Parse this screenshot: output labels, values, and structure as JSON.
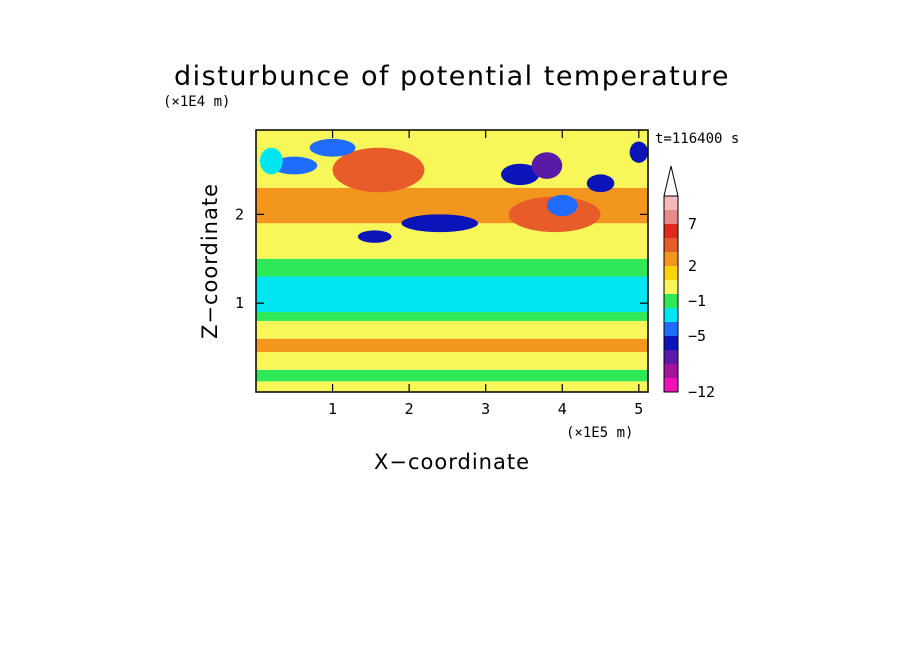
{
  "chart_data": {
    "type": "heatmap",
    "title": "disturbunce of potential temperature",
    "xlabel": "X−coordinate",
    "ylabel": "Z−coordinate",
    "x_unit": "(×1E5 m)",
    "y_unit": "(×1E4 m)",
    "time_label": "t=116400 s",
    "xlim": [
      0,
      5.12
    ],
    "ylim": [
      0,
      2.95
    ],
    "x_ticks": [
      "1",
      "2",
      "3",
      "4",
      "5"
    ],
    "y_ticks": [
      "1",
      "2"
    ],
    "x_tick_values": [
      1,
      2,
      3,
      4,
      5
    ],
    "y_tick_values": [
      1,
      2
    ],
    "colorbar": {
      "tick_labels": [
        "7",
        "2",
        "−1",
        "−5",
        "−12"
      ],
      "tick_values": [
        7,
        2,
        -1,
        -5,
        -12
      ],
      "extend": "max",
      "levels": [
        {
          "color": "#f5b8bc"
        },
        {
          "color": "#e8898c"
        },
        {
          "color": "#e02a1e"
        },
        {
          "color": "#e85c2a"
        },
        {
          "color": "#f3961e"
        },
        {
          "color": "#f9d40e"
        },
        {
          "color": "#f7f75a"
        },
        {
          "color": "#2fe858"
        },
        {
          "color": "#00e5f2"
        },
        {
          "color": "#1f6cff"
        },
        {
          "color": "#0a14b8"
        },
        {
          "color": "#5a1aa8"
        },
        {
          "color": "#a5159c"
        },
        {
          "color": "#f00fb8"
        }
      ]
    },
    "bands": [
      {
        "z": [
          0.0,
          0.12
        ],
        "level": "yellow"
      },
      {
        "z": [
          0.12,
          0.25
        ],
        "level": "green"
      },
      {
        "z": [
          0.25,
          0.45
        ],
        "level": "yellow"
      },
      {
        "z": [
          0.45,
          0.6
        ],
        "level": "orange"
      },
      {
        "z": [
          0.6,
          0.8
        ],
        "level": "yellow"
      },
      {
        "z": [
          0.8,
          0.9
        ],
        "level": "green"
      },
      {
        "z": [
          0.9,
          1.3
        ],
        "level": "cyan"
      },
      {
        "z": [
          1.3,
          1.5
        ],
        "level": "green"
      },
      {
        "z": [
          1.5,
          1.9
        ],
        "level": "yellow"
      },
      {
        "z": [
          1.9,
          2.3
        ],
        "level": "orange"
      },
      {
        "z": [
          2.3,
          2.95
        ],
        "level": "yellow"
      }
    ],
    "features": [
      {
        "x": 2.4,
        "z": 1.9,
        "rx": 0.5,
        "rz": 0.1,
        "level": "dark-blue"
      },
      {
        "x": 1.55,
        "z": 1.75,
        "rx": 0.22,
        "rz": 0.07,
        "level": "dark-blue"
      },
      {
        "x": 1.6,
        "z": 2.5,
        "rx": 0.6,
        "rz": 0.25,
        "level": "dark-orange"
      },
      {
        "x": 3.9,
        "z": 2.0,
        "rx": 0.6,
        "rz": 0.2,
        "level": "dark-orange"
      },
      {
        "x": 0.5,
        "z": 2.55,
        "rx": 0.3,
        "rz": 0.1,
        "level": "blue"
      },
      {
        "x": 1.0,
        "z": 2.75,
        "rx": 0.3,
        "rz": 0.1,
        "level": "blue"
      },
      {
        "x": 3.45,
        "z": 2.45,
        "rx": 0.25,
        "rz": 0.12,
        "level": "dark-blue"
      },
      {
        "x": 3.8,
        "z": 2.55,
        "rx": 0.2,
        "rz": 0.15,
        "level": "purple"
      },
      {
        "x": 4.0,
        "z": 2.1,
        "rx": 0.2,
        "rz": 0.12,
        "level": "blue"
      },
      {
        "x": 4.5,
        "z": 2.35,
        "rx": 0.18,
        "rz": 0.1,
        "level": "dark-blue"
      },
      {
        "x": 5.0,
        "z": 2.7,
        "rx": 0.12,
        "rz": 0.12,
        "level": "dark-blue"
      },
      {
        "x": 0.2,
        "z": 2.6,
        "rx": 0.15,
        "rz": 0.15,
        "level": "cyan"
      }
    ]
  }
}
